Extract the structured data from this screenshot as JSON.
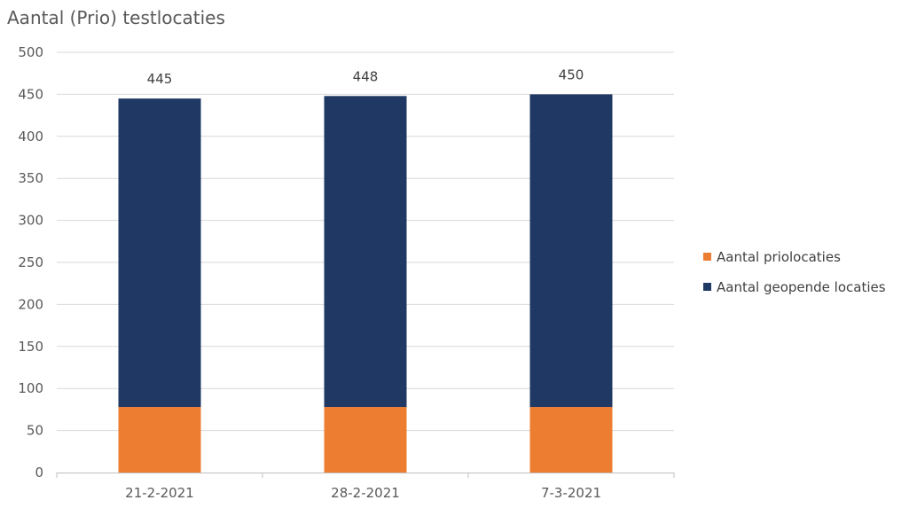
{
  "chart_data": {
    "type": "bar",
    "stacked": true,
    "title": "Aantal (Prio) testlocaties",
    "xlabel": "",
    "ylabel": "",
    "categories": [
      "21-2-2021",
      "28-2-2021",
      "7-3-2021"
    ],
    "series": [
      {
        "name": "Aantal priolocaties",
        "color": "#ed7d31",
        "values": [
          78,
          78,
          78
        ]
      },
      {
        "name": "Aantal geopende locaties",
        "color": "#1f3864",
        "values": [
          367,
          370,
          372
        ]
      }
    ],
    "totals": [
      "445",
      "448",
      "450"
    ],
    "ylim": [
      0,
      500
    ],
    "yticks": [
      "0",
      "50",
      "100",
      "150",
      "200",
      "250",
      "300",
      "350",
      "400",
      "450",
      "500"
    ],
    "grid": true,
    "legend_position": "right"
  }
}
